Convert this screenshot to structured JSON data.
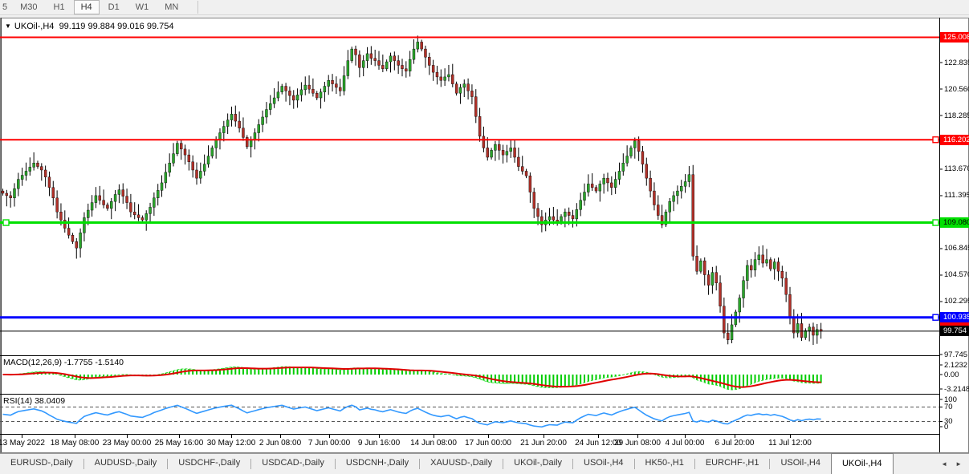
{
  "toolbar": {
    "timeframes": [
      "5",
      "M30",
      "H1",
      "H4",
      "D1",
      "W1",
      "MN"
    ],
    "active_timeframe": "H4"
  },
  "chart": {
    "title_symbol": "UKOil-,H4",
    "title_ohlc": "99.119 99.884 99.016 99.754",
    "price_axis_ticks": [
      "122.835",
      "120.560",
      "118.285",
      "113.670",
      "111.395",
      "106.845",
      "104.570",
      "102.295",
      "97.745"
    ],
    "hlines": [
      {
        "price": 125.008,
        "label": "125.008",
        "color": "#ff0000",
        "text_color": "#ffffff",
        "width": 2,
        "handles": []
      },
      {
        "price": 116.202,
        "label": "116.202",
        "color": "#ff0000",
        "text_color": "#ffffff",
        "width": 2,
        "handles": [
          "right"
        ]
      },
      {
        "price": 109.08,
        "label": "109.080",
        "color": "#00e000",
        "text_color": "#000000",
        "width": 3,
        "handles": [
          "left",
          "right"
        ]
      },
      {
        "price": 100.935,
        "label": "100.935",
        "color": "#0000ff",
        "text_color": "#ffffff",
        "width": 3,
        "handles": [
          "right"
        ]
      }
    ],
    "current_price": {
      "value": 99.754,
      "label": "99.754",
      "badge_bg": "#000000",
      "badge_text": "#ffffff"
    },
    "colors": {
      "bull": "#2aa42a",
      "bear": "#b03028",
      "wick": "#000000",
      "background": "#ffffff"
    }
  },
  "macd": {
    "label": "MACD(12,26,9) -1.7755 -1.5140",
    "scale": [
      "2.1232",
      "0.00",
      "-3.2148"
    ],
    "histogram_color": "#00cc00",
    "signal_color": "#e00000"
  },
  "rsi": {
    "label": "RSI(14) 38.0409",
    "scale": [
      "100",
      "70",
      "30",
      "0"
    ],
    "levels": [
      70,
      30
    ],
    "line_color": "#3399ff"
  },
  "date_axis": {
    "labels": [
      "13 May 2022",
      "18 May 08:00",
      "23 May 00:00",
      "25 May 16:00",
      "30 May 12:00",
      "2 Jun 08:00",
      "7 Jun 00:00",
      "9 Jun 16:00",
      "14 Jun 08:00",
      "17 Jun 00:00",
      "21 Jun 20:00",
      "24 Jun 12:00",
      "29 Jun 08:00",
      "4 Jul 00:00",
      "6 Jul 20:00",
      "11 Jul 12:00"
    ]
  },
  "tabs": {
    "items": [
      "EURUSD-,Daily",
      "AUDUSD-,Daily",
      "USDCHF-,Daily",
      "USDCAD-,Daily",
      "USDCNH-,Daily",
      "XAUUSD-,Daily",
      "UKOil-,Daily",
      "USOil-,H4",
      "HK50-,H1",
      "EURCHF-,H1",
      "USOil-,H4",
      "UKOil-,H4"
    ],
    "active_index": 11,
    "scroll_left": "◄",
    "scroll_right": "►"
  },
  "chart_data": {
    "type": "candlestick",
    "symbol": "UKOil-,H4",
    "timeframe": "H4",
    "visible_range": [
      97.745,
      125.008
    ],
    "closes": [
      111.6,
      111.4,
      111.2,
      112.0,
      112.8,
      113.15,
      113.5,
      113.85,
      114.2,
      113.9,
      113.6,
      113.0,
      112.1,
      111.2,
      110.0,
      109.3,
      108.6,
      108.0,
      107.45,
      106.9,
      108.2,
      109.5,
      110.15,
      110.8,
      111.4,
      111.0,
      110.6,
      110.3,
      110.9,
      111.5,
      111.9,
      111.35,
      110.8,
      110.0,
      109.75,
      109.5,
      109.3,
      109.85,
      110.4,
      111.2,
      111.85,
      112.5,
      113.4,
      114.2,
      115.0,
      115.9,
      115.4,
      114.9,
      114.3,
      113.6,
      112.9,
      113.5,
      114.1,
      114.8,
      115.5,
      116.2,
      116.8,
      117.35,
      117.9,
      118.4,
      117.8,
      117.2,
      116.4,
      115.6,
      116.2,
      116.8,
      117.5,
      118.15,
      118.8,
      119.3,
      119.8,
      120.3,
      120.8,
      120.4,
      120.0,
      119.6,
      120.05,
      120.5,
      120.9,
      120.55,
      120.2,
      119.8,
      120.3,
      120.8,
      121.3,
      121.0,
      120.7,
      120.4,
      121.7,
      123.0,
      124.0,
      123.5,
      122.4,
      123.0,
      123.6,
      123.2,
      123.0,
      122.6,
      122.3,
      122.9,
      123.4,
      123.0,
      122.6,
      122.3,
      122.1,
      123.1,
      124.0,
      124.6,
      124.0,
      123.3,
      122.6,
      122.0,
      121.6,
      121.3,
      121.6,
      121.8,
      121.0,
      120.2,
      120.7,
      121.0,
      120.4,
      119.9,
      118.2,
      116.5,
      115.5,
      114.7,
      115.3,
      115.8,
      115.3,
      114.9,
      115.2,
      115.5,
      114.7,
      113.9,
      113.5,
      113.1,
      111.7,
      110.3,
      109.6,
      108.9,
      109.3,
      109.6,
      109.3,
      109.1,
      109.6,
      110.0,
      109.7,
      109.4,
      110.2,
      111.0,
      111.7,
      112.4,
      112.1,
      111.8,
      112.4,
      112.9,
      112.5,
      112.1,
      112.8,
      113.5,
      114.2,
      114.8,
      115.5,
      116.1,
      115.2,
      114.1,
      112.9,
      111.8,
      110.6,
      109.7,
      108.9,
      110.0,
      110.9,
      111.4,
      111.8,
      112.2,
      112.6,
      113.2,
      106.2,
      104.9,
      105.8,
      104.6,
      103.7,
      104.8,
      103.9,
      101.9,
      99.6,
      99.0,
      100.3,
      101.4,
      102.6,
      104.1,
      105.4,
      105.0,
      105.9,
      106.3,
      105.6,
      105.9,
      105.1,
      105.7,
      104.9,
      104.3,
      102.9,
      100.9,
      99.6,
      100.4,
      99.2,
      99.8,
      100.1,
      99.4,
      99.9,
      99.754
    ]
  }
}
